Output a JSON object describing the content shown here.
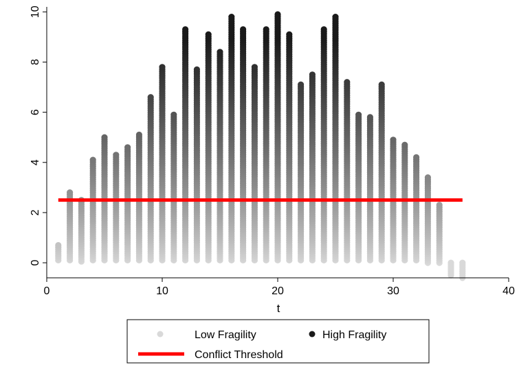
{
  "chart_data": {
    "type": "scatter",
    "title": "",
    "xlabel": "t",
    "ylabel": "",
    "xlim": [
      0,
      40
    ],
    "ylim": [
      -0.6,
      10.2
    ],
    "xticks": [
      0,
      10,
      20,
      30,
      40
    ],
    "yticks": [
      0,
      2,
      4,
      6,
      8,
      10
    ],
    "grid": false,
    "legend_position": "bottom",
    "threshold": {
      "name": "Conflict Threshold",
      "y": 2.5,
      "x_start": 1,
      "x_end": 36,
      "color": "#ff0000"
    },
    "series": [
      {
        "name": "Low Fragility",
        "color": "#d9d9d9"
      },
      {
        "name": "High Fragility",
        "color": "#1a1a1a"
      }
    ],
    "columns": [
      {
        "x": 1,
        "min": 0.1,
        "max": 0.7
      },
      {
        "x": 2,
        "min": 0.1,
        "max": 2.8
      },
      {
        "x": 3,
        "min": 0.05,
        "max": 2.5
      },
      {
        "x": 4,
        "min": 0.1,
        "max": 4.1
      },
      {
        "x": 5,
        "min": 0.1,
        "max": 5.0
      },
      {
        "x": 6,
        "min": 0.1,
        "max": 4.3
      },
      {
        "x": 7,
        "min": 0.1,
        "max": 4.6
      },
      {
        "x": 8,
        "min": 0.1,
        "max": 5.1
      },
      {
        "x": 9,
        "min": 0.1,
        "max": 6.6
      },
      {
        "x": 10,
        "min": 0.1,
        "max": 7.8
      },
      {
        "x": 11,
        "min": 0.1,
        "max": 5.9
      },
      {
        "x": 12,
        "min": 0.1,
        "max": 9.3
      },
      {
        "x": 13,
        "min": 0.1,
        "max": 7.7
      },
      {
        "x": 14,
        "min": 0.1,
        "max": 9.1
      },
      {
        "x": 15,
        "min": 0.1,
        "max": 8.4
      },
      {
        "x": 16,
        "min": 0.1,
        "max": 9.8
      },
      {
        "x": 17,
        "min": 0.1,
        "max": 9.3
      },
      {
        "x": 18,
        "min": 0.1,
        "max": 7.8
      },
      {
        "x": 19,
        "min": 0.1,
        "max": 9.3
      },
      {
        "x": 20,
        "min": 0.1,
        "max": 9.9
      },
      {
        "x": 21,
        "min": 0.1,
        "max": 9.1
      },
      {
        "x": 22,
        "min": 0.1,
        "max": 7.1
      },
      {
        "x": 23,
        "min": 0.1,
        "max": 7.5
      },
      {
        "x": 24,
        "min": 0.1,
        "max": 9.3
      },
      {
        "x": 25,
        "min": 0.1,
        "max": 9.8
      },
      {
        "x": 26,
        "min": 0.1,
        "max": 7.2
      },
      {
        "x": 27,
        "min": 0.1,
        "max": 5.9
      },
      {
        "x": 28,
        "min": 0.1,
        "max": 5.8
      },
      {
        "x": 29,
        "min": 0.1,
        "max": 7.1
      },
      {
        "x": 30,
        "min": 0.1,
        "max": 4.9
      },
      {
        "x": 31,
        "min": 0.1,
        "max": 4.7
      },
      {
        "x": 32,
        "min": 0.1,
        "max": 4.2
      },
      {
        "x": 33,
        "min": 0.0,
        "max": 3.4
      },
      {
        "x": 34,
        "min": 0.0,
        "max": 2.3
      },
      {
        "x": 35,
        "min": -0.5,
        "max": 0.0
      },
      {
        "x": 36,
        "min": -0.6,
        "max": 0.0
      }
    ]
  }
}
